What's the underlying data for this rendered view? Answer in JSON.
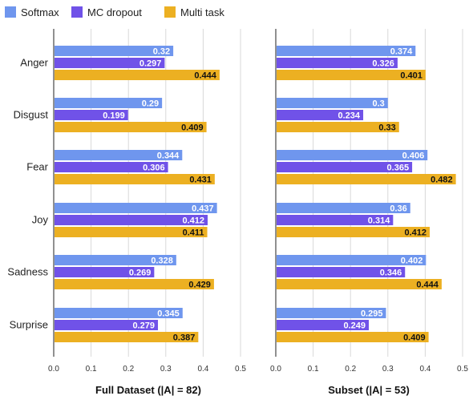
{
  "legend": [
    {
      "label": "Softmax",
      "color": "#6f96ee"
    },
    {
      "label": "MC dropout",
      "color": "#7052e8"
    },
    {
      "label": "Multi task",
      "color": "#ecb022"
    }
  ],
  "chart_data": [
    {
      "type": "bar",
      "orientation": "horizontal",
      "title": "Full Dataset (|A| = 82)",
      "categories": [
        "Anger",
        "Disgust",
        "Fear",
        "Joy",
        "Sadness",
        "Surprise"
      ],
      "series": [
        {
          "name": "Softmax",
          "color": "#6f96ee",
          "values": [
            0.32,
            0.29,
            0.344,
            0.437,
            0.328,
            0.345
          ]
        },
        {
          "name": "MC dropout",
          "color": "#7052e8",
          "values": [
            0.297,
            0.199,
            0.306,
            0.412,
            0.269,
            0.279
          ]
        },
        {
          "name": "Multi task",
          "color": "#ecb022",
          "values": [
            0.444,
            0.409,
            0.431,
            0.411,
            0.429,
            0.387
          ]
        }
      ],
      "xlim": [
        0,
        0.5
      ],
      "xticks": [
        "0.0",
        "0.1",
        "0.2",
        "0.3",
        "0.4",
        "0.5"
      ],
      "grid": true,
      "legend": "top"
    },
    {
      "type": "bar",
      "orientation": "horizontal",
      "title": "Subset (|A| = 53)",
      "categories": [
        "Anger",
        "Disgust",
        "Fear",
        "Joy",
        "Sadness",
        "Surprise"
      ],
      "series": [
        {
          "name": "Softmax",
          "color": "#6f96ee",
          "values": [
            0.374,
            0.3,
            0.406,
            0.36,
            0.402,
            0.295
          ]
        },
        {
          "name": "MC dropout",
          "color": "#7052e8",
          "values": [
            0.326,
            0.234,
            0.365,
            0.314,
            0.346,
            0.249
          ]
        },
        {
          "name": "Multi task",
          "color": "#ecb022",
          "values": [
            0.401,
            0.33,
            0.482,
            0.412,
            0.444,
            0.409
          ]
        }
      ],
      "xlim": [
        0,
        0.5
      ],
      "xticks": [
        "0.0",
        "0.1",
        "0.2",
        "0.3",
        "0.4",
        "0.5"
      ],
      "grid": true,
      "legend": "top"
    }
  ]
}
